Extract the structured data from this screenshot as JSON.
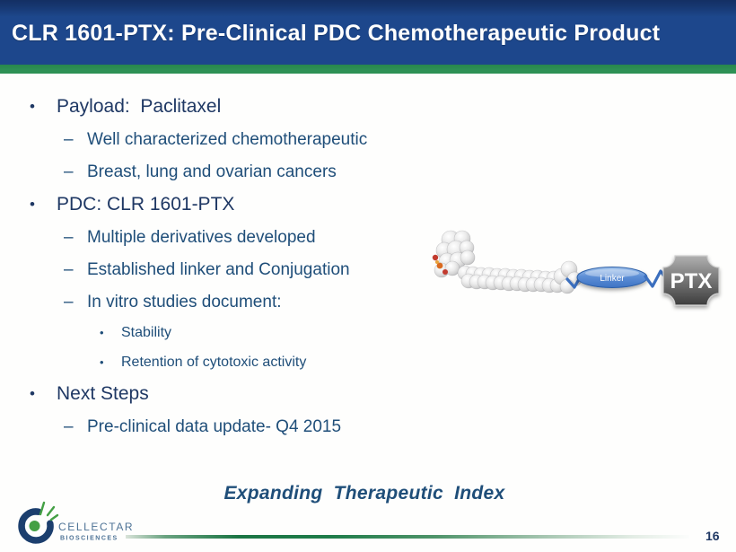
{
  "slide": {
    "title": "CLR 1601-PTX: Pre-Clinical PDC Chemotherapeutic Product",
    "tagline": "Expanding Therapeutic Index",
    "page_number": "16"
  },
  "markers": {
    "1": "•",
    "2": "–",
    "3": "•"
  },
  "bullets": [
    {
      "level": 1,
      "text": "Payload:  Paclitaxel"
    },
    {
      "level": 2,
      "text": "Well characterized chemotherapeutic"
    },
    {
      "level": 2,
      "text": "Breast, lung and ovarian cancers"
    },
    {
      "level": 1,
      "text": "PDC: CLR 1601-PTX"
    },
    {
      "level": 2,
      "text": "Multiple derivatives developed"
    },
    {
      "level": 2,
      "text": "Established linker and Conjugation"
    },
    {
      "level": 2,
      "text": "In vitro studies document:"
    },
    {
      "level": 3,
      "text": "Stability"
    },
    {
      "level": 3,
      "text": "Retention of cytotoxic activity"
    },
    {
      "level": 1,
      "text": "Next Steps"
    },
    {
      "level": 2,
      "text": "Pre-clinical data update- Q4 2015"
    }
  ],
  "diagram": {
    "linker_label": "Linker",
    "payload_label": "PTX"
  },
  "logo": {
    "name": "CELLECTAR",
    "subtitle": "BIOSCIENCES"
  },
  "colors": {
    "header_blue": "#1D478C",
    "header_blue_dark": "#142F63",
    "accent_green": "#2E9155",
    "body_text_navy": "#1F3864",
    "sub_text_blue": "#1F4E79",
    "linker_blue": "#3F74C4",
    "ptx_gray_dark": "#3E3E3E",
    "logo_blue": "#1C3F6E",
    "logo_green": "#44A045",
    "logo_text_blue": "#4E7396"
  }
}
